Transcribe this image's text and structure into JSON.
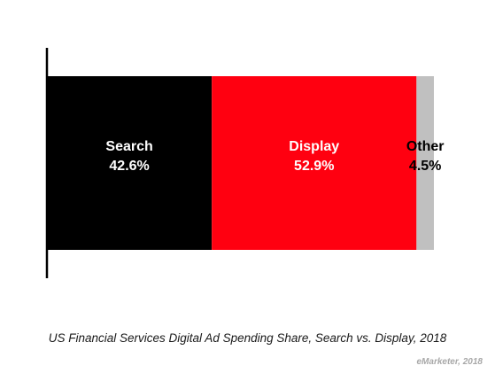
{
  "chart_data": {
    "type": "bar",
    "orientation": "horizontal",
    "stacked": true,
    "normalized": "percent",
    "categories": [
      "Search",
      "Display",
      "Other"
    ],
    "values": [
      42.6,
      52.9,
      4.5
    ],
    "value_labels": [
      "42.6%",
      "52.9%",
      "4.5%"
    ],
    "colors": [
      "#000000",
      "#ff0010",
      "#c0c0c0"
    ],
    "label_colors": [
      "#ffffff",
      "#ffffff",
      "#000000"
    ],
    "title": "US Financial Services Digital Ad Spending Share, Search vs. Display, 2018",
    "xlim": [
      0,
      100
    ],
    "grid": false,
    "legend": "none"
  },
  "caption": "US Financial Services Digital Ad Spending Share, Search vs. Display, 2018",
  "source": "eMarketer, 2018"
}
